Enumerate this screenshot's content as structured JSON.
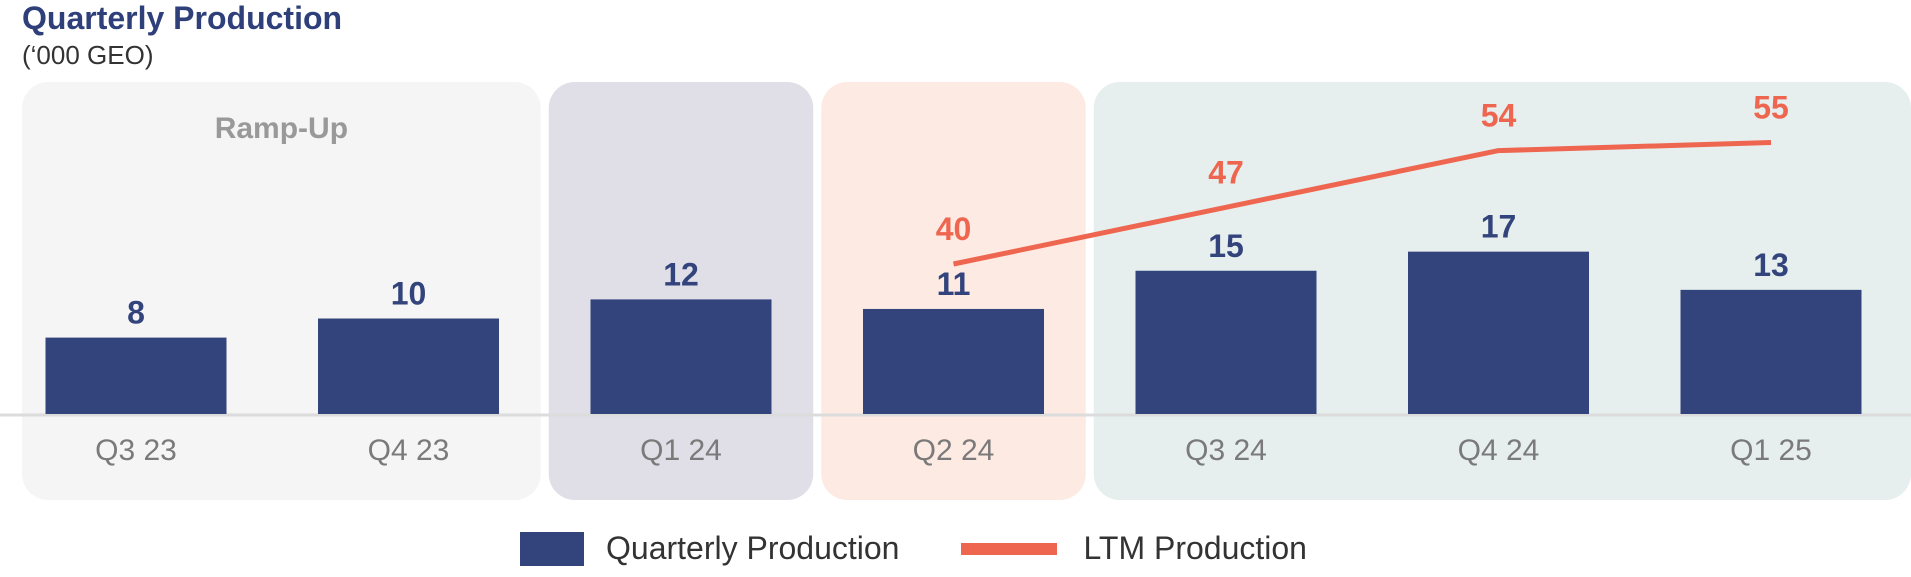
{
  "chart_data": {
    "type": "bar",
    "title": "Quarterly Production",
    "subtitle": "(‘000 GEO)",
    "categories": [
      "Q3 23",
      "Q4 23",
      "Q1 24",
      "Q2 24",
      "Q3 24",
      "Q4 24",
      "Q1 25"
    ],
    "series": [
      {
        "name": "Quarterly Production",
        "type": "bar",
        "color": "#33447c",
        "values": [
          8,
          10,
          12,
          11,
          15,
          17,
          13
        ]
      },
      {
        "name": "LTM Production",
        "type": "line",
        "color": "#ee6650",
        "x": [
          "Q2 24",
          "Q3 24",
          "Q4 24",
          "Q1 25"
        ],
        "values": [
          40,
          47,
          54,
          55
        ]
      }
    ],
    "phases": [
      {
        "label": "Ramp-Up",
        "categories": [
          "Q3 23",
          "Q4 23"
        ],
        "color": "#f5f5f5"
      },
      {
        "label": "",
        "categories": [
          "Q1 24"
        ],
        "color": "#e0dfe8"
      },
      {
        "label": "",
        "categories": [
          "Q2 24"
        ],
        "color": "#fdeae3"
      },
      {
        "label": "",
        "categories": [
          "Q3 24",
          "Q4 24",
          "Q1 25"
        ],
        "color": "#e6efee"
      }
    ],
    "xlabel": "",
    "ylabel": "",
    "legend_position": "bottom-center",
    "grid": false,
    "colors": {
      "title": "#2e3f7a",
      "tick_label": "#7a7a7a",
      "phase_label": "#999999",
      "baseline": "#dcdcdc"
    }
  }
}
